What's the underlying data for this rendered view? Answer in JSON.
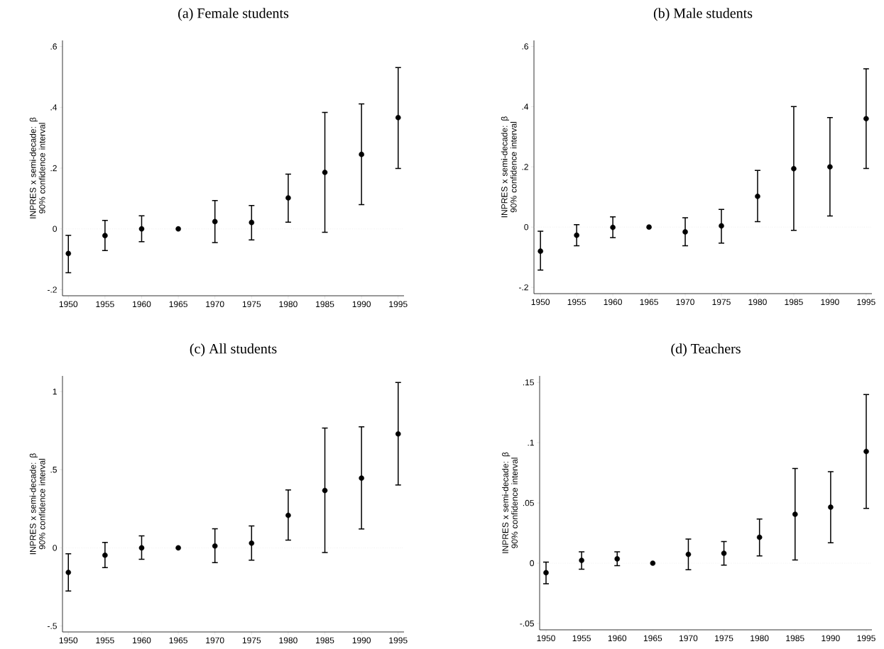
{
  "chart_data": [
    {
      "type": "scatter",
      "title": "(a) Female students",
      "ylabel": "INPRES x semi-decade: β 90% confidence interval",
      "marker": "circle",
      "x": [
        1950,
        1955,
        1960,
        1965,
        1970,
        1975,
        1980,
        1985,
        1990,
        1995
      ],
      "series": [
        {
          "color": "#000000",
          "values": [
            -0.081,
            -0.022,
            0,
            0,
            0.024,
            0.021,
            0.102,
            0.186,
            0.245,
            0.366
          ],
          "errors": [
            [
              -0.144,
              -0.021
            ],
            [
              -0.071,
              0.028
            ],
            [
              -0.042,
              0.043
            ],
            null,
            [
              -0.045,
              0.093
            ],
            [
              -0.036,
              0.077
            ],
            [
              0.022,
              0.18
            ],
            [
              -0.011,
              0.383
            ],
            [
              0.08,
              0.411
            ],
            [
              0.199,
              0.531
            ]
          ]
        }
      ],
      "xlim": [
        1949.2,
        1995.8
      ],
      "ylim": [
        -0.22,
        0.62
      ],
      "xticks": [
        1950,
        1955,
        1960,
        1965,
        1970,
        1975,
        1980,
        1985,
        1990,
        1995
      ],
      "yticks": [
        {
          "value": -0.2,
          "label": "-.2"
        },
        0,
        {
          "value": 0.2,
          "label": ".2"
        },
        {
          "value": 0.4,
          "label": ".4"
        },
        {
          "value": 0.6,
          "label": ".6"
        }
      ],
      "ref_lines": [
        {
          "axis": "y",
          "value": 0,
          "color": "#d9d9d9",
          "line_style": "dotted"
        }
      ]
    },
    {
      "type": "scatter",
      "title": "(b) Male students",
      "ylabel": "INPRES x semi-decade: β 90% confidence interval",
      "marker": "circle",
      "x": [
        1950,
        1955,
        1960,
        1965,
        1970,
        1975,
        1980,
        1985,
        1990,
        1995
      ],
      "series": [
        {
          "color": "#000000",
          "values": [
            -0.08,
            -0.027,
            -0.001,
            0,
            -0.016,
            0.004,
            0.102,
            0.194,
            0.2,
            0.36
          ],
          "errors": [
            [
              -0.143,
              -0.014
            ],
            [
              -0.062,
              0.008
            ],
            [
              -0.035,
              0.034
            ],
            null,
            [
              -0.062,
              0.031
            ],
            [
              -0.053,
              0.059
            ],
            [
              0.018,
              0.188
            ],
            [
              -0.011,
              0.4
            ],
            [
              0.037,
              0.364
            ],
            [
              0.195,
              0.526
            ]
          ]
        }
      ],
      "xlim": [
        1949.1,
        1995.8
      ],
      "ylim": [
        -0.221,
        0.62
      ],
      "xticks": [
        1950,
        1955,
        1960,
        1965,
        1970,
        1975,
        1980,
        1985,
        1990,
        1995
      ],
      "yticks": [
        {
          "value": -0.2,
          "label": "-.2"
        },
        0,
        {
          "value": 0.2,
          "label": ".2"
        },
        {
          "value": 0.4,
          "label": ".4"
        },
        {
          "value": 0.6,
          "label": ".6"
        }
      ],
      "ref_lines": [
        {
          "axis": "y",
          "value": 0,
          "color": "#d9d9d9",
          "line_style": "dotted"
        }
      ]
    },
    {
      "type": "scatter",
      "title": "(c) All students",
      "ylabel": "INPRES x semi-decade: β 90% confidence interval",
      "marker": "circle",
      "x": [
        1950,
        1955,
        1960,
        1965,
        1970,
        1975,
        1980,
        1985,
        1990,
        1995
      ],
      "series": [
        {
          "color": "#000000",
          "values": [
            -0.157,
            -0.047,
            0,
            0,
            0.012,
            0.03,
            0.208,
            0.367,
            0.446,
            0.729
          ],
          "errors": [
            [
              -0.276,
              -0.038
            ],
            [
              -0.126,
              0.035
            ],
            [
              -0.073,
              0.077
            ],
            null,
            [
              -0.094,
              0.122
            ],
            [
              -0.079,
              0.14
            ],
            [
              0.049,
              0.371
            ],
            [
              -0.03,
              0.766
            ],
            [
              0.121,
              0.774
            ],
            [
              0.402,
              1.058
            ]
          ]
        }
      ],
      "xlim": [
        1949.2,
        1995.8
      ],
      "ylim": [
        -0.538,
        1.1
      ],
      "xticks": [
        1950,
        1955,
        1960,
        1965,
        1970,
        1975,
        1980,
        1985,
        1990,
        1995
      ],
      "yticks": [
        {
          "value": -0.5,
          "label": "-.5"
        },
        0,
        {
          "value": 0.5,
          "label": ".5"
        },
        1
      ],
      "ref_lines": [
        {
          "axis": "y",
          "value": 0,
          "color": "#d9d9d9",
          "line_style": "dotted"
        }
      ]
    },
    {
      "type": "scatter",
      "title": "(d) Teachers",
      "ylabel": "INPRES x semi-decade: β 90% confidence interval",
      "marker": "circle",
      "x": [
        1950,
        1955,
        1960,
        1965,
        1970,
        1975,
        1980,
        1985,
        1990,
        1995
      ],
      "series": [
        {
          "color": "#000000",
          "values": [
            -0.0079,
            0.0023,
            0.0036,
            0,
            0.0073,
            0.0082,
            0.0215,
            0.0406,
            0.0465,
            0.0927
          ],
          "errors": [
            [
              -0.017,
              0.0009
            ],
            [
              -0.005,
              0.0095
            ],
            [
              -0.002,
              0.0095
            ],
            null,
            [
              -0.0054,
              0.02
            ],
            [
              -0.0016,
              0.018
            ],
            [
              0.006,
              0.0367
            ],
            [
              0.0027,
              0.0786
            ],
            [
              0.017,
              0.0759
            ],
            [
              0.0455,
              0.14
            ]
          ]
        }
      ],
      "xlim": [
        1949.1,
        1995.8
      ],
      "ylim": [
        -0.0553,
        0.1554
      ],
      "xticks": [
        1950,
        1955,
        1960,
        1965,
        1970,
        1975,
        1980,
        1985,
        1990,
        1995
      ],
      "yticks": [
        {
          "value": -0.05,
          "label": "-.05"
        },
        0,
        {
          "value": 0.05,
          "label": ".05"
        },
        {
          "value": 0.1,
          "label": ".1"
        },
        {
          "value": 0.15,
          "label": ".15"
        }
      ],
      "ref_lines": [
        {
          "axis": "y",
          "value": 0,
          "color": "#d9d9d9",
          "line_style": "dotted"
        }
      ]
    }
  ]
}
